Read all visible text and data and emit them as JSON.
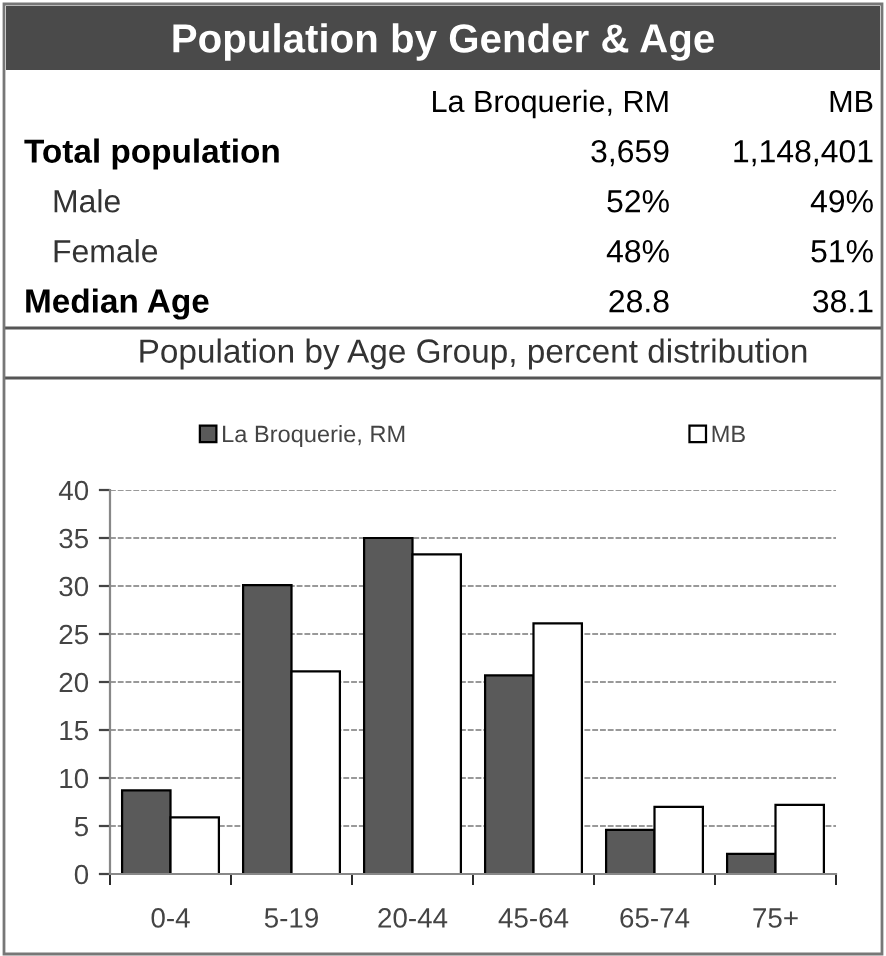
{
  "chart_data": [
    {
      "type": "other",
      "title": "Population by Gender & Age",
      "annotations": [
        "La Broquerie, RM",
        "MB",
        "Total population",
        "3,659",
        "1,148,401",
        "Male",
        "52%",
        "49%",
        "Female",
        "48%",
        "51%",
        "Median Age",
        "28.8",
        "38.1"
      ]
    },
    {
      "type": "bar",
      "title": "Population by Age Group, percent distribution",
      "categories": [
        "0-4",
        "5-19",
        "20-44",
        "45-64",
        "65-74",
        "75+"
      ],
      "series": [
        {
          "name": "La Broquerie, RM",
          "color": "#5a5a5a",
          "values": [
            8.7,
            30.1,
            35.0,
            20.7,
            4.6,
            2.1
          ]
        },
        {
          "name": "MB",
          "color": "#ffffff",
          "values": [
            5.9,
            21.1,
            33.3,
            26.1,
            7.0,
            7.2
          ]
        }
      ],
      "ylim": [
        0,
        40
      ],
      "yticks": [
        0,
        5,
        10,
        15,
        20,
        25,
        30,
        35,
        40
      ],
      "grid": "y",
      "legend": "top"
    }
  ]
}
